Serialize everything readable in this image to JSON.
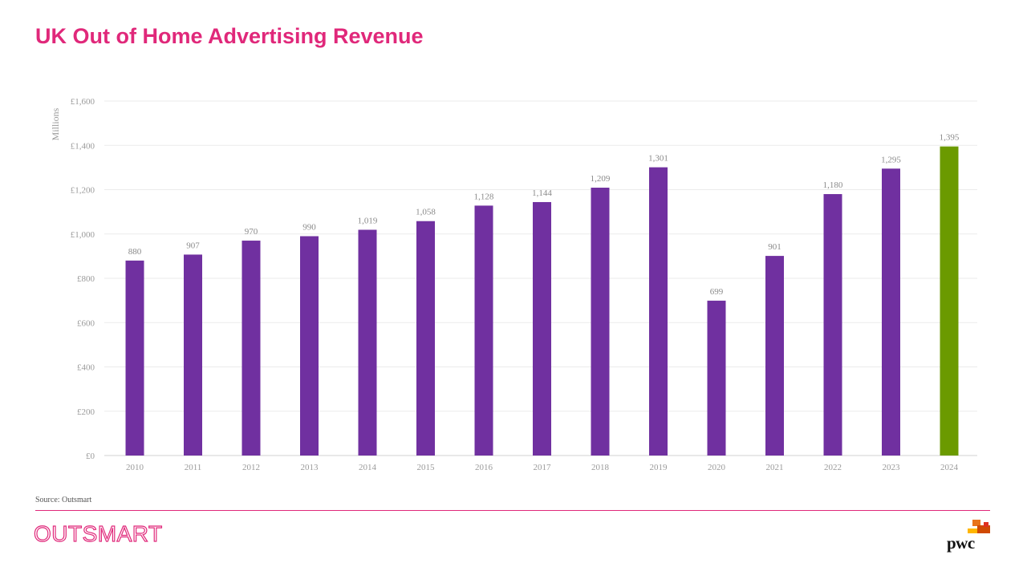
{
  "title": "UK Out of Home Advertising Revenue",
  "source": "Source: Outsmart",
  "logos": {
    "left": "OUTSMART",
    "right": "pwc"
  },
  "colors": {
    "title": "#e0287a",
    "bar": "#7030a0",
    "highlight_bar": "#6b9a00",
    "rule": "#e0287a",
    "pwc_orange": "#e8731a",
    "pwc_red": "#d04a02",
    "pwc_yellow": "#ffb600"
  },
  "chart_data": {
    "type": "bar",
    "categories": [
      "2010",
      "2011",
      "2012",
      "2013",
      "2014",
      "2015",
      "2016",
      "2017",
      "2018",
      "2019",
      "2020",
      "2021",
      "2022",
      "2023",
      "2024"
    ],
    "values": [
      880,
      907,
      970,
      990,
      1019,
      1058,
      1128,
      1144,
      1209,
      1301,
      699,
      901,
      1180,
      1295,
      1395
    ],
    "data_labels": [
      "880",
      "907",
      "970",
      "990",
      "1,019",
      "1,058",
      "1,128",
      "1,144",
      "1,209",
      "1,301",
      "699",
      "901",
      "1,180",
      "1,295",
      "1,395"
    ],
    "highlight_category": "2024",
    "ylabel": "Millions",
    "ylim": [
      0,
      1600
    ],
    "yticks": [
      0,
      200,
      400,
      600,
      800,
      1000,
      1200,
      1400,
      1600
    ],
    "ytick_labels": [
      "£0",
      "£200",
      "£400",
      "£600",
      "£800",
      "£1,000",
      "£1,200",
      "£1,400",
      "£1,600"
    ],
    "grid": true,
    "legend": "none"
  }
}
